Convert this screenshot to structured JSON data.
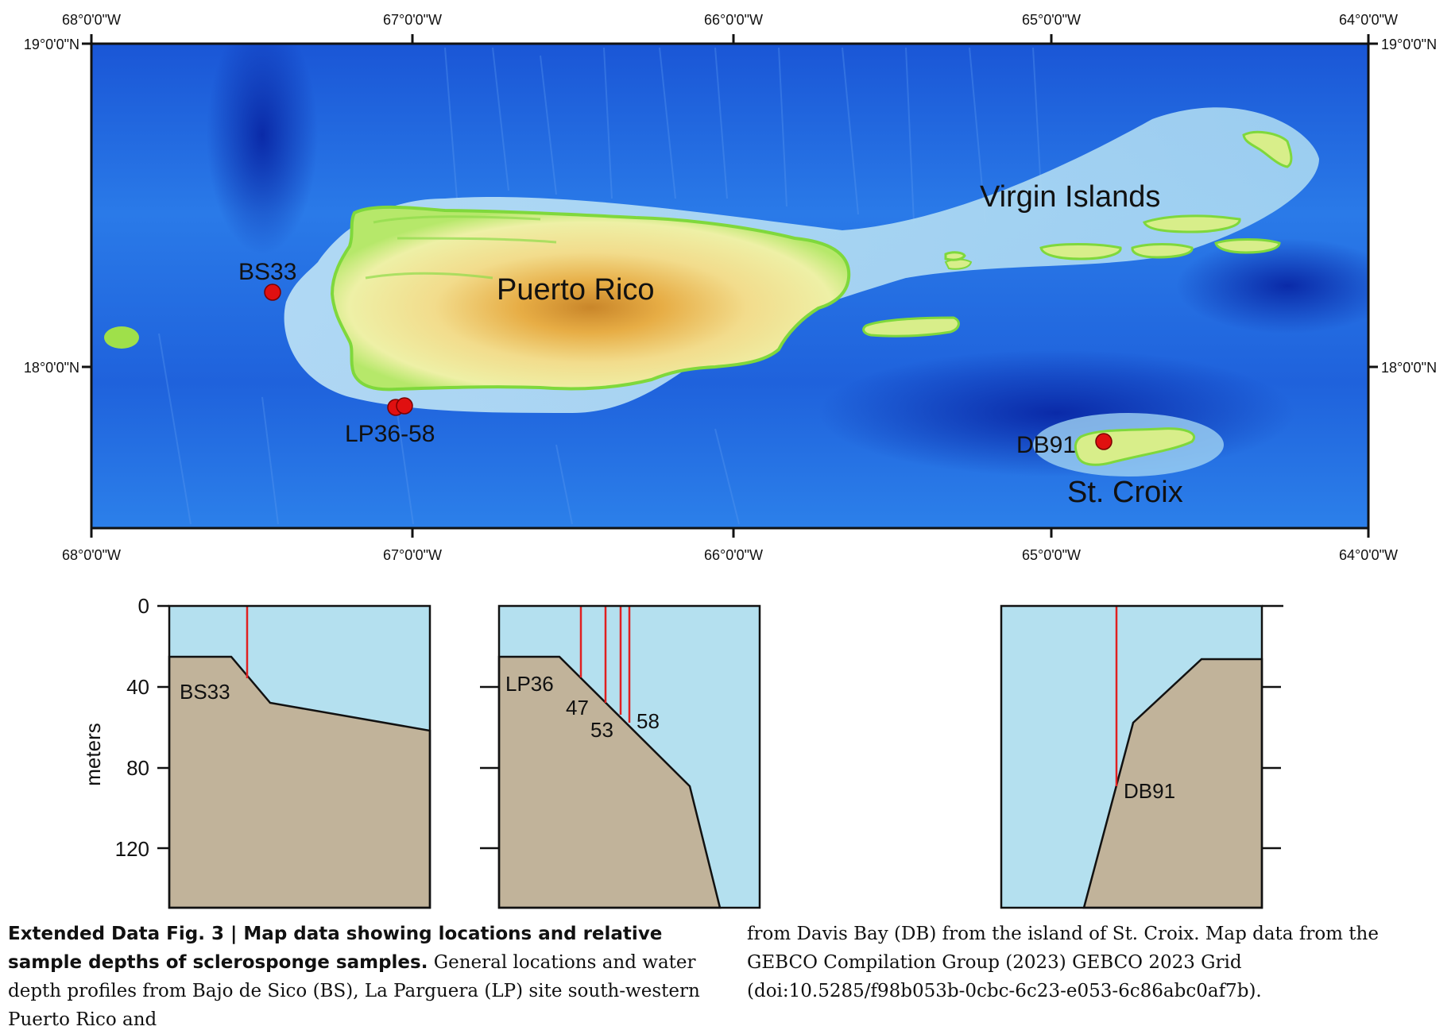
{
  "map": {
    "lon_top_labels": [
      "68°0'0\"W",
      "67°0'0\"W",
      "66°0'0\"W",
      "65°0'0\"W",
      "64°0'0\"W"
    ],
    "lon_bottom_labels": [
      "68°0'0\"W",
      "67°0'0\"W",
      "66°0'0\"W",
      "65°0'0\"W",
      "64°0'0\"W"
    ],
    "lat_labels": [
      "19°0'0\"N",
      "18°0'0\"N"
    ],
    "place_labels": {
      "puerto_rico": "Puerto Rico",
      "virgin_islands": "Virgin Islands",
      "st_croix": "St. Croix"
    },
    "sample_labels": {
      "bs33": "BS33",
      "lp": "LP36-58",
      "db91": "DB91"
    },
    "colors": {
      "ocean_deep": "#0a2fb8",
      "ocean_mid": "#1f6ee0",
      "shelf": "#bfe3f5",
      "land_low": "#9fe04a",
      "land_mid": "#f3e9a0",
      "land_high": "#e1a437",
      "marker": "#e01010"
    }
  },
  "profiles": {
    "y_axis_label": "meters",
    "y_ticks": [
      "0",
      "40",
      "80",
      "120"
    ],
    "panel_bs": {
      "label": "BS33",
      "samples_depth_m": [
        37
      ]
    },
    "panel_lp": {
      "labels": [
        "LP36",
        "47",
        "53",
        "58"
      ],
      "samples_depth_m": [
        36,
        47,
        53,
        58
      ]
    },
    "panel_db": {
      "label": "DB91",
      "samples_depth_m": [
        91
      ]
    },
    "colors": {
      "water": "#b4e0ef",
      "seabed": "#c1b39a",
      "sample_line": "#e02020"
    }
  },
  "caption": {
    "lead": "Extended Data Fig. 3 | Map data showing locations and relative sample depths of sclerosponge samples.",
    "body_left": " General locations and water depth profiles from Bajo de Sico (BS), La Parguera (LP) site south-western Puerto Rico and",
    "body_right": "from Davis Bay (DB) from the island of St. Croix. Map data from the GEBCO Compilation Group (2023) GEBCO 2023 Grid (doi:10.5285/f98b053b-0cbc-6c23-e053-6c86abc0af7b)."
  }
}
